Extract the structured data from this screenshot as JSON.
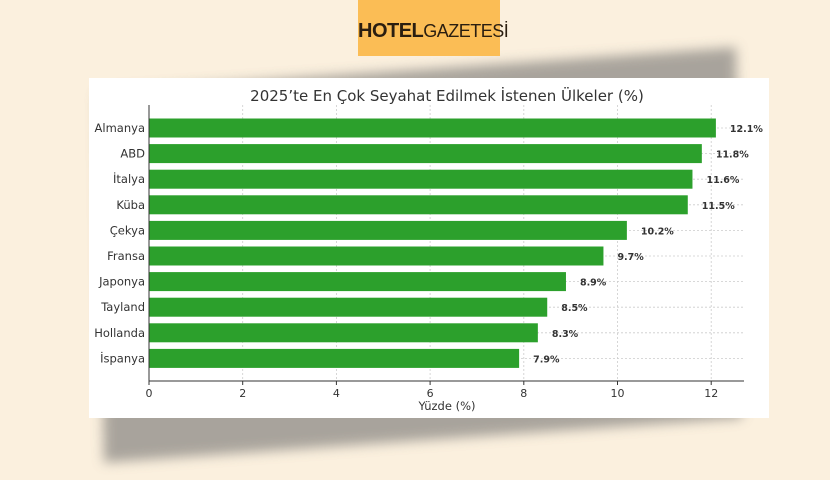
{
  "logo": {
    "brand_bold": "HOTEL",
    "brand_light": "GAZETESİ"
  },
  "chart_data": {
    "type": "bar",
    "orientation": "horizontal",
    "title": "2025’te En Çok Seyahat Edilmek İstenen Ülkeler (%)",
    "xlabel": "Yüzde (%)",
    "ylabel": "",
    "categories": [
      "Almanya",
      "ABD",
      "İtalya",
      "Küba",
      "Çekya",
      "Fransa",
      "Japonya",
      "Tayland",
      "Hollanda",
      "İspanya"
    ],
    "values": [
      12.1,
      11.8,
      11.6,
      11.5,
      10.2,
      9.7,
      8.9,
      8.5,
      8.3,
      7.9
    ],
    "labels": [
      "12.1%",
      "11.8%",
      "11.6%",
      "11.5%",
      "10.2%",
      "9.7%",
      "8.9%",
      "8.5%",
      "8.3%",
      "7.9%"
    ],
    "xticks": [
      "0",
      "2",
      "4",
      "6",
      "8",
      "10",
      "12"
    ],
    "xlim": [
      0,
      12.7
    ],
    "grid": true,
    "color": "#2ca02c"
  }
}
